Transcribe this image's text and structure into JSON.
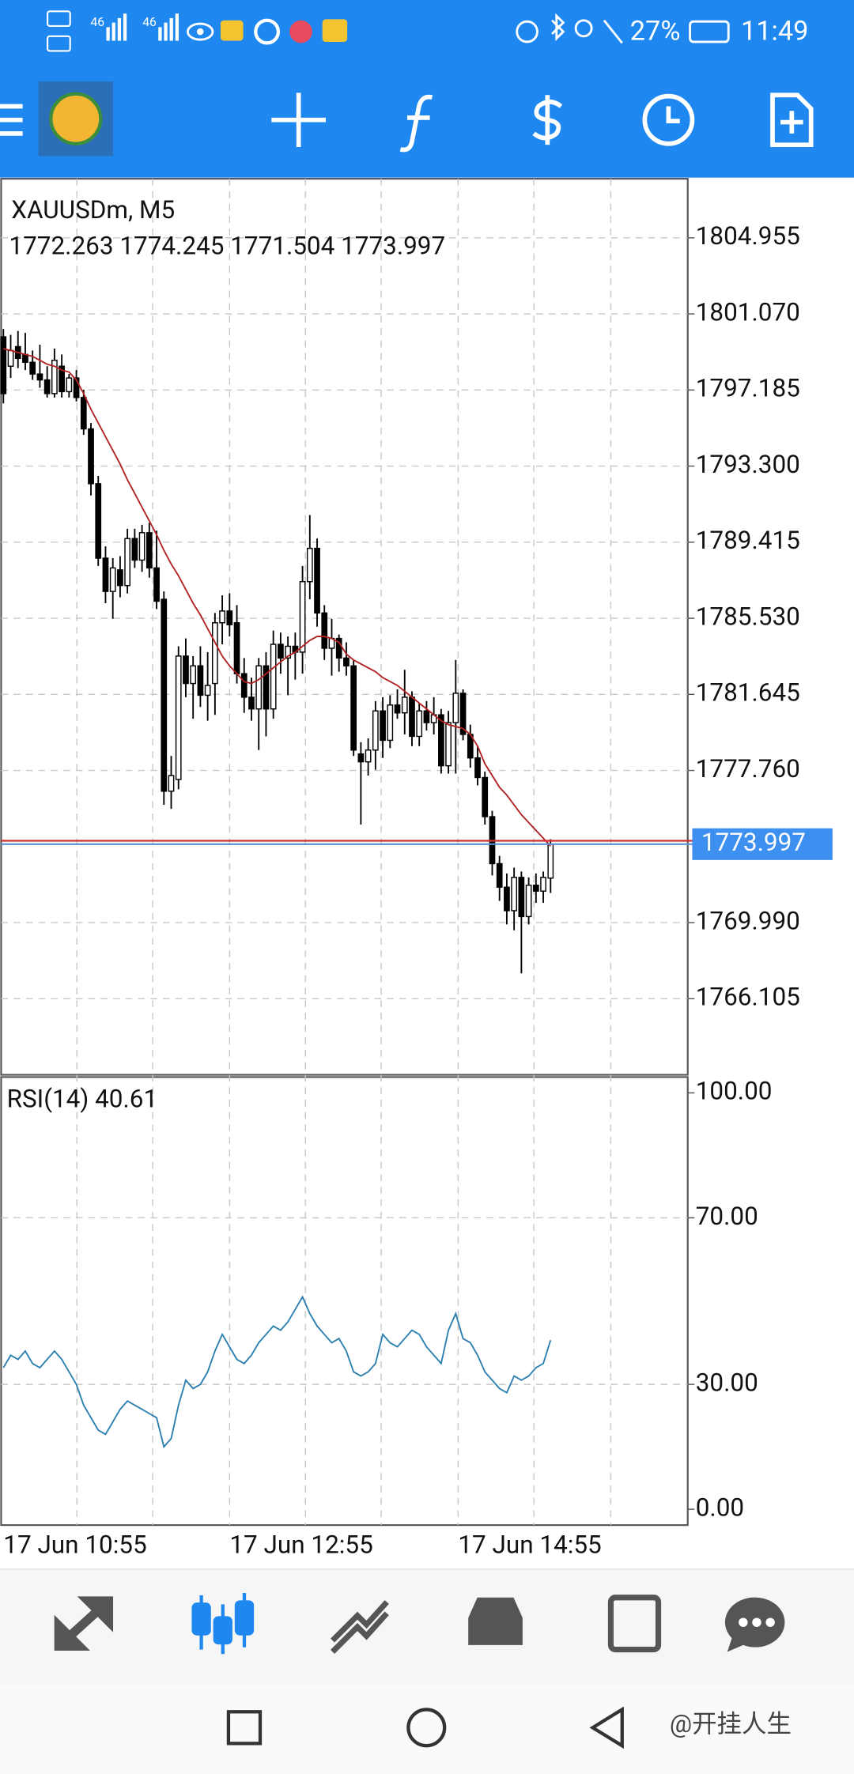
{
  "status_bar": {
    "network_labels": [
      "46",
      "46"
    ],
    "battery": "27%",
    "time": "11:49"
  },
  "chart_data": {
    "type": "candlestick",
    "title": "XAUUSDm, M5",
    "open": [
      1799.9,
      1798.4,
      1799.4,
      1799.0,
      1798.6,
      1798.0,
      1797.7,
      1797.0,
      1798.4,
      1797.1,
      1797.8,
      1796.8,
      1795.2,
      1792.4,
      1788.6,
      1786.9,
      1788.0,
      1787.2,
      1789.6,
      1788.5,
      1789.9,
      1788.1,
      1786.5,
      1776.7,
      1777.3,
      1783.6,
      1782.2,
      1783.1,
      1781.6,
      1782.2,
      1785.3,
      1785.9,
      1785.3,
      1782.7,
      1781.5,
      1780.9,
      1783.1,
      1780.9,
      1784.2,
      1783.5,
      1784.1,
      1783.8,
      1787.4,
      1789.1,
      1785.8,
      1784.0,
      1784.5,
      1783.5,
      1783.1,
      1778.6,
      1778.2,
      1778.8,
      1780.8,
      1779.3,
      1781.1,
      1780.7,
      1781.5,
      1779.5,
      1780.8,
      1780.2,
      1780.6,
      1778.0,
      1780.2,
      1781.7,
      1779.6,
      1778.4,
      1777.4,
      1775.4,
      1773.0,
      1771.8,
      1770.6,
      1772.3,
      1770.3,
      1771.9,
      1771.6,
      1772.263
    ],
    "high": [
      1800.3,
      1800.0,
      1800.2,
      1800.1,
      1799.2,
      1799.5,
      1798.4,
      1799.3,
      1799.0,
      1798.0,
      1798.2,
      1797.2,
      1795.5,
      1792.8,
      1789.2,
      1788.6,
      1788.7,
      1790.1,
      1790.1,
      1790.3,
      1790.4,
      1790.0,
      1786.9,
      1778.5,
      1784.1,
      1784.5,
      1783.6,
      1784.1,
      1783.8,
      1785.8,
      1786.7,
      1786.8,
      1786.2,
      1783.5,
      1782.5,
      1783.5,
      1783.8,
      1784.9,
      1784.8,
      1784.6,
      1784.8,
      1788.2,
      1790.8,
      1789.6,
      1786.2,
      1785.5,
      1784.7,
      1784.3,
      1783.4,
      1779.2,
      1779.4,
      1781.3,
      1781.5,
      1781.6,
      1781.9,
      1782.9,
      1781.8,
      1781.2,
      1781.3,
      1781.5,
      1780.9,
      1780.8,
      1783.4,
      1781.9,
      1780.1,
      1779.0,
      1777.7,
      1775.7,
      1773.4,
      1772.5,
      1772.8,
      1772.6,
      1772.3,
      1772.5,
      1772.6,
      1774.245
    ],
    "low": [
      1796.5,
      1797.8,
      1798.3,
      1798.2,
      1797.7,
      1797.3,
      1796.8,
      1796.8,
      1796.8,
      1796.8,
      1796.6,
      1794.9,
      1791.8,
      1788.2,
      1786.3,
      1785.5,
      1786.6,
      1786.8,
      1788.1,
      1787.9,
      1787.6,
      1786.0,
      1776.0,
      1775.8,
      1776.8,
      1781.5,
      1780.4,
      1781.0,
      1780.3,
      1780.6,
      1784.2,
      1784.6,
      1782.2,
      1780.7,
      1780.3,
      1778.8,
      1779.5,
      1780.4,
      1782.7,
      1781.6,
      1782.4,
      1782.7,
      1786.5,
      1785.1,
      1783.4,
      1782.6,
      1782.8,
      1782.6,
      1778.5,
      1775.0,
      1777.5,
      1777.8,
      1778.4,
      1778.9,
      1780.4,
      1779.6,
      1779.0,
      1779.0,
      1779.8,
      1779.6,
      1777.6,
      1777.6,
      1777.6,
      1779.3,
      1777.9,
      1777.0,
      1775.0,
      1772.4,
      1771.1,
      1769.9,
      1769.6,
      1767.4,
      1769.9,
      1771.0,
      1771.0,
      1771.504
    ],
    "close": [
      1797.0,
      1799.2,
      1798.8,
      1798.6,
      1798.0,
      1797.7,
      1797.0,
      1798.7,
      1797.1,
      1797.8,
      1796.8,
      1795.2,
      1792.4,
      1788.6,
      1786.9,
      1788.1,
      1787.2,
      1789.6,
      1788.5,
      1789.9,
      1788.1,
      1786.4,
      1776.7,
      1777.5,
      1783.6,
      1782.2,
      1783.1,
      1781.6,
      1782.1,
      1785.3,
      1785.9,
      1785.2,
      1782.7,
      1781.5,
      1780.9,
      1783.1,
      1780.9,
      1784.2,
      1783.5,
      1784.1,
      1783.8,
      1787.4,
      1789.1,
      1785.8,
      1784.0,
      1784.5,
      1783.5,
      1783.1,
      1778.8,
      1778.2,
      1778.8,
      1780.8,
      1779.3,
      1781.1,
      1780.7,
      1781.5,
      1779.5,
      1780.8,
      1780.2,
      1780.6,
      1778.0,
      1780.2,
      1781.7,
      1779.6,
      1778.4,
      1777.4,
      1775.4,
      1773.0,
      1771.8,
      1770.6,
      1772.3,
      1770.3,
      1771.9,
      1771.6,
      1772.3,
      1773.997
    ],
    "ma": {
      "color": "#b22222",
      "values": [
        1799.3,
        1799.2,
        1799.1,
        1799.0,
        1798.9,
        1798.7,
        1798.5,
        1798.4,
        1798.2,
        1798.1,
        1797.7,
        1797.0,
        1796.2,
        1795.5,
        1794.8,
        1794.1,
        1793.4,
        1792.6,
        1791.9,
        1791.2,
        1790.5,
        1789.8,
        1789.0,
        1788.3,
        1787.7,
        1787.0,
        1786.3,
        1785.7,
        1785.0,
        1784.3,
        1783.6,
        1783.1,
        1782.7,
        1782.3,
        1782.2,
        1782.4,
        1782.7,
        1783.0,
        1783.3,
        1783.6,
        1783.8,
        1784.1,
        1784.4,
        1784.6,
        1784.6,
        1784.5,
        1784.3,
        1783.7,
        1783.4,
        1783.2,
        1783.0,
        1782.8,
        1782.5,
        1782.3,
        1782.1,
        1781.8,
        1781.5,
        1781.2,
        1780.9,
        1780.6,
        1780.3,
        1780.1,
        1780.0,
        1779.9,
        1779.6,
        1779.0,
        1778.1,
        1777.5,
        1776.9,
        1776.5,
        1776.0,
        1775.5,
        1775.1,
        1774.7,
        1774.3,
        1773.9
      ]
    },
    "ylim": [
      1762.22,
      1807.97
    ],
    "yticks": [
      1804.955,
      {
        "value": 1801.07,
        "label": "1801.070"
      },
      1797.185,
      {
        "value": 1793.3,
        "label": "1793.300"
      },
      1789.415,
      {
        "value": 1785.53,
        "label": "1785.530"
      },
      1781.645,
      {
        "value": 1777.76,
        "label": "1777.760"
      },
      {
        "value": 1769.99,
        "label": "1769.990"
      },
      1766.105
    ],
    "x_labels": [
      "17 Jun 10:55",
      "17 Jun 12:55",
      "17 Jun 14:55"
    ],
    "rsi": {
      "name": "RSI(14)",
      "color": "#2a7fb0",
      "values": [
        34,
        37,
        36,
        38,
        35,
        34,
        36,
        38,
        36,
        33,
        30,
        25,
        22,
        19,
        18,
        21,
        24,
        26,
        25,
        24,
        23,
        22,
        15,
        17,
        25,
        31,
        29,
        30,
        33,
        38,
        42,
        39,
        36,
        35,
        37,
        40,
        42,
        44,
        43,
        45,
        48,
        51,
        47,
        44,
        42,
        40,
        41,
        38,
        33,
        32,
        33,
        35,
        42,
        40,
        39,
        41,
        43,
        42,
        39,
        37,
        35,
        43,
        47,
        41,
        40,
        37,
        33,
        31,
        29,
        28,
        32,
        31,
        32,
        34,
        35,
        40.61
      ],
      "ylim": [
        -3.8,
        103.8
      ],
      "yticks": [
        {
          "value": 100,
          "label": "100.00"
        },
        {
          "value": 70,
          "label": "70.00"
        },
        {
          "value": 30,
          "label": "30.00"
        },
        {
          "value": 0,
          "label": "0.00"
        }
      ]
    }
  },
  "watermark": "@开挂人生"
}
